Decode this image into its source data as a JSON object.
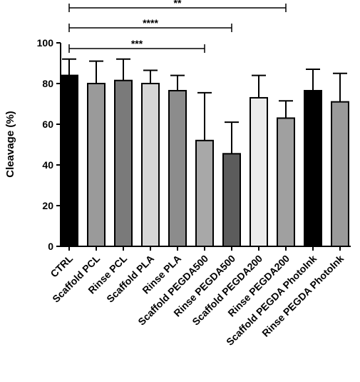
{
  "chart_data": {
    "type": "bar",
    "title": "",
    "xlabel": "",
    "ylabel": "Cleavage (%)",
    "ylim": [
      0,
      100
    ],
    "yticks": [
      0,
      20,
      40,
      60,
      80,
      100
    ],
    "categories": [
      "CTRL",
      "Scaffold PCL",
      "Rinse PCL",
      "Scaffold PLA",
      "Rinse PLA",
      "Scaffold PEGDA500",
      "Rinse PEGDA500",
      "Scaffold PEGDA200",
      "Rinse PEGDA200",
      "Scaffold PEGDA PhotoInk",
      "Rinse PEGDA PhotoInk"
    ],
    "values": [
      84,
      80,
      81.5,
      80,
      76.5,
      52,
      45.5,
      73,
      63,
      76.5,
      71
    ],
    "error_upper": [
      92,
      91,
      92,
      86.5,
      84,
      75.5,
      61,
      84,
      71.5,
      87,
      85
    ],
    "bar_colors": [
      "#000000",
      "#9a9a9a",
      "#7a7a7a",
      "#d6d6d6",
      "#8c8c8c",
      "#a8a8a8",
      "#5c5c5c",
      "#ececec",
      "#a0a0a0",
      "#000000",
      "#9a9a9a"
    ],
    "grid": false,
    "significance": [
      {
        "from": "CTRL",
        "to": "Scaffold PEGDA500",
        "label": "***"
      },
      {
        "from": "CTRL",
        "to": "Rinse PEGDA500",
        "label": "****"
      },
      {
        "from": "CTRL",
        "to": "Rinse PEGDA200",
        "label": "**"
      }
    ]
  }
}
